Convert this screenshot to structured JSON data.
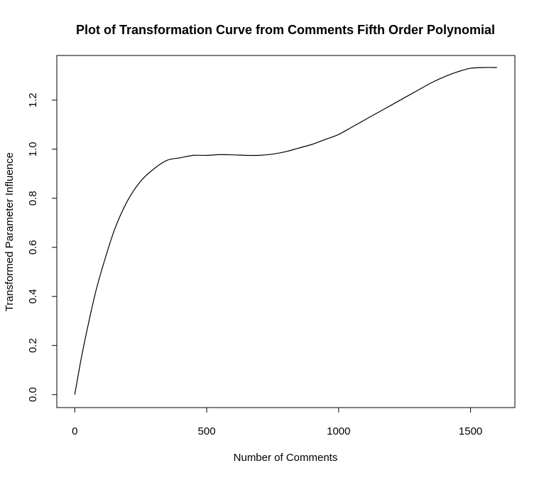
{
  "chart_data": {
    "type": "line",
    "title": "Plot of Transformation Curve from Comments Fifth Order Polynomial",
    "xlabel": "Number of Comments",
    "ylabel": "Transformed Parameter Influence",
    "xlim": [
      -68,
      1668
    ],
    "ylim": [
      -0.053,
      1.382
    ],
    "x_ticks": [
      0,
      500,
      1000,
      1500
    ],
    "x_tick_labels": [
      "0",
      "500",
      "1000",
      "1500"
    ],
    "y_ticks": [
      0.0,
      0.2,
      0.4,
      0.6,
      0.8,
      1.0,
      1.2
    ],
    "y_tick_labels": [
      "0.0",
      "0.2",
      "0.4",
      "0.6",
      "0.8",
      "1.0",
      "1.2"
    ],
    "grid": false,
    "legend": "none",
    "line_color": "#000000",
    "series": [
      {
        "x": [
          0,
          25,
          50,
          75,
          100,
          150,
          200,
          250,
          300,
          350,
          400,
          450,
          500,
          550,
          600,
          650,
          700,
          750,
          800,
          850,
          900,
          950,
          1000,
          1050,
          1100,
          1150,
          1200,
          1250,
          1300,
          1350,
          1400,
          1450,
          1500,
          1550,
          1600
        ],
        "y": [
          0.0,
          0.15,
          0.28,
          0.4,
          0.5,
          0.67,
          0.79,
          0.87,
          0.92,
          0.955,
          0.965,
          0.975,
          0.975,
          0.978,
          0.977,
          0.975,
          0.975,
          0.98,
          0.99,
          1.005,
          1.02,
          1.04,
          1.06,
          1.09,
          1.12,
          1.15,
          1.18,
          1.21,
          1.24,
          1.27,
          1.295,
          1.315,
          1.33,
          1.333,
          1.333
        ]
      }
    ]
  }
}
